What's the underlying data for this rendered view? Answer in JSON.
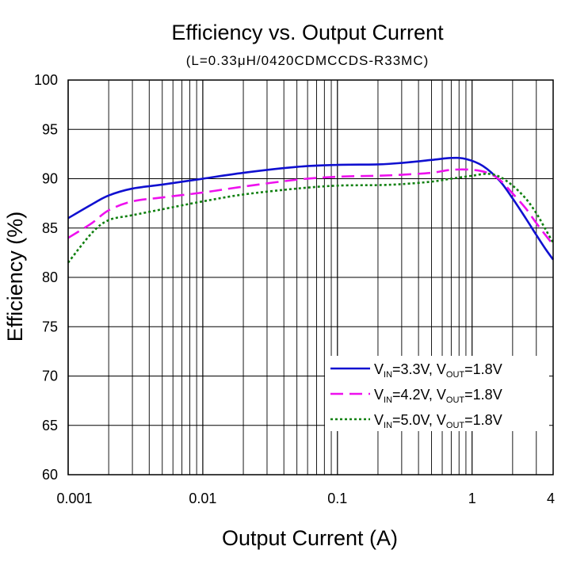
{
  "chart_data": {
    "type": "line",
    "title": "Efficiency vs. Output Current",
    "subtitle": "(L=0.33μH/0420CDMCCDS-R33MC)",
    "xlabel": "Output Current (A)",
    "ylabel": "Efficiency (%)",
    "x_scale": "log",
    "xlim": [
      0.001,
      4
    ],
    "ylim": [
      60,
      100
    ],
    "x_ticks": [
      0.001,
      0.01,
      0.1,
      1,
      4
    ],
    "x_tick_labels": [
      "0.001",
      "0.01",
      "0.1",
      "1",
      "4"
    ],
    "y_ticks": [
      60,
      65,
      70,
      75,
      80,
      85,
      90,
      95,
      100
    ],
    "y_tick_labels": [
      "60",
      "65",
      "70",
      "75",
      "80",
      "85",
      "90",
      "95",
      "100"
    ],
    "grid": true,
    "legend_position": "bottom-right",
    "series": [
      {
        "name": "VIN=3.3V, VOUT=1.8V",
        "legend": {
          "v1": "V",
          "s1": "IN",
          "m1": "=3.3V, ",
          "v2": "V",
          "s2": "OUT",
          "m2": "=1.8V"
        },
        "color": "#1010d0",
        "style": "solid",
        "x": [
          0.001,
          0.0015,
          0.002,
          0.003,
          0.005,
          0.01,
          0.02,
          0.05,
          0.1,
          0.2,
          0.3,
          0.5,
          0.7,
          0.9,
          1.2,
          1.6,
          2.0,
          2.5,
          3.0,
          3.5,
          4.0
        ],
        "y": [
          86.0,
          87.4,
          88.3,
          89.0,
          89.4,
          90.0,
          90.6,
          91.2,
          91.4,
          91.45,
          91.6,
          91.9,
          92.1,
          92.0,
          91.3,
          89.8,
          88.0,
          86.0,
          84.3,
          82.9,
          81.8
        ]
      },
      {
        "name": "VIN=4.2V, VOUT=1.8V",
        "legend": {
          "v1": "V",
          "s1": "IN",
          "m1": "=4.2V, ",
          "v2": "V",
          "s2": "OUT",
          "m2": "=1.8V"
        },
        "color": "#ee10ee",
        "style": "dashed",
        "x": [
          0.001,
          0.0015,
          0.002,
          0.003,
          0.005,
          0.01,
          0.02,
          0.05,
          0.1,
          0.2,
          0.3,
          0.5,
          0.7,
          1.0,
          1.3,
          1.6,
          2.0,
          2.5,
          3.0,
          3.5,
          4.0
        ],
        "y": [
          84.0,
          85.5,
          86.8,
          87.7,
          88.1,
          88.6,
          89.2,
          89.9,
          90.2,
          90.3,
          90.4,
          90.6,
          90.9,
          90.9,
          90.6,
          89.9,
          88.5,
          87.0,
          85.5,
          84.3,
          83.3
        ]
      },
      {
        "name": "VIN=5.0V, VOUT=1.8V",
        "legend": {
          "v1": "V",
          "s1": "IN",
          "m1": "=5.0V, ",
          "v2": "V",
          "s2": "OUT",
          "m2": "=1.8V"
        },
        "color": "#108010",
        "style": "dotted",
        "x": [
          0.001,
          0.0015,
          0.002,
          0.003,
          0.005,
          0.01,
          0.02,
          0.05,
          0.1,
          0.2,
          0.3,
          0.5,
          0.7,
          1.0,
          1.3,
          1.6,
          2.0,
          2.5,
          3.0,
          3.5,
          4.0
        ],
        "y": [
          81.5,
          84.5,
          85.8,
          86.3,
          86.9,
          87.7,
          88.4,
          89.0,
          89.3,
          89.35,
          89.45,
          89.7,
          90.0,
          90.3,
          90.5,
          90.2,
          89.3,
          88.0,
          86.5,
          84.9,
          83.5
        ]
      }
    ]
  }
}
